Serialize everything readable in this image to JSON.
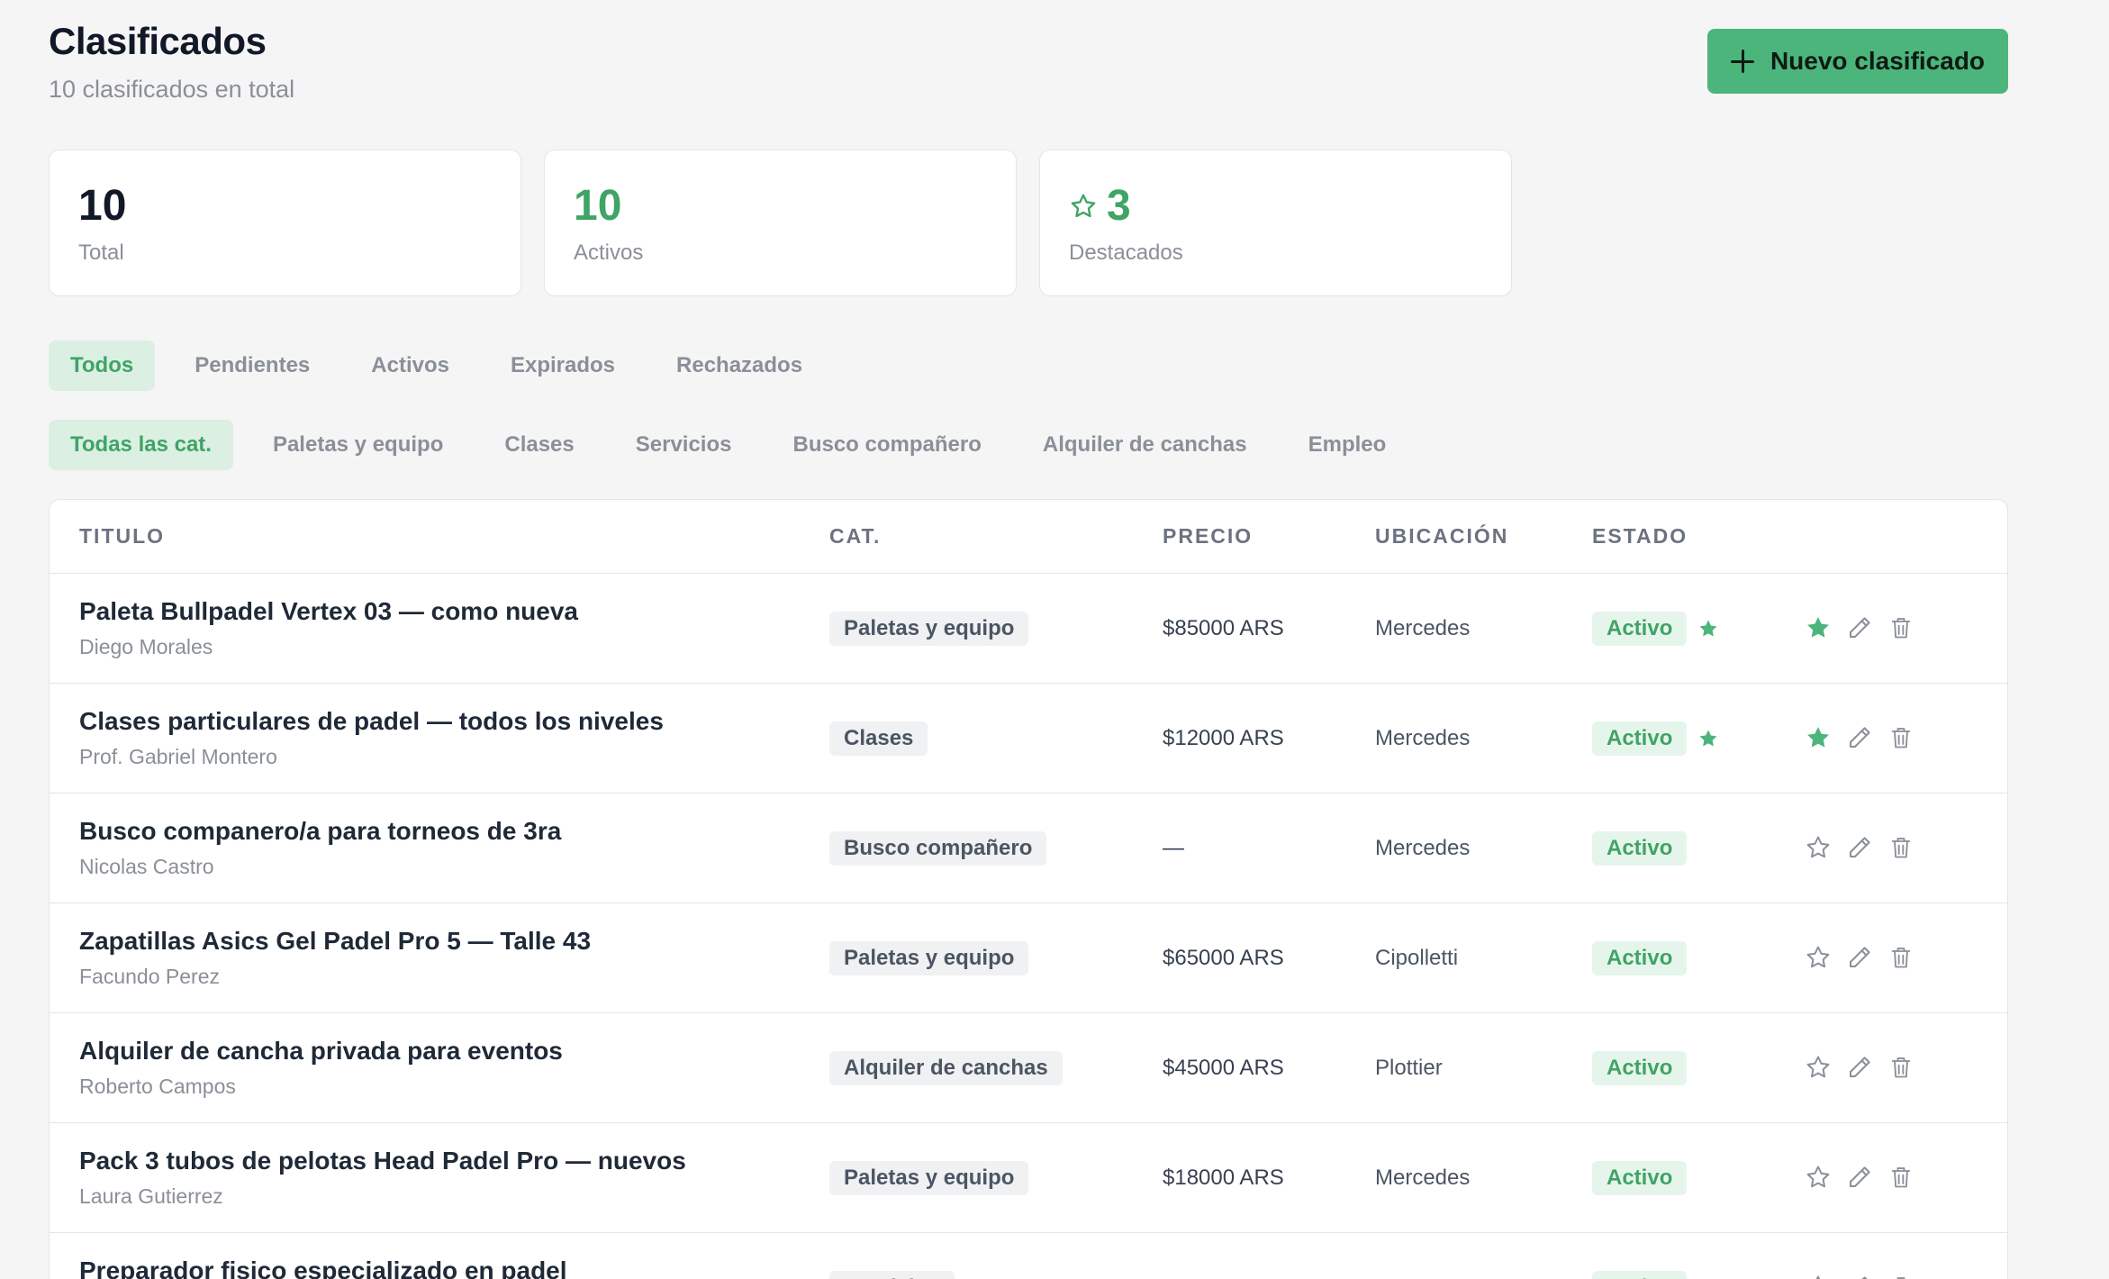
{
  "header": {
    "title": "Clasificados",
    "subtitle": "10 clasificados en total",
    "new_button_label": "Nuevo clasificado"
  },
  "stats": {
    "total": {
      "value": "10",
      "label": "Total"
    },
    "active": {
      "value": "10",
      "label": "Activos"
    },
    "featured": {
      "value": "3",
      "label": "Destacados"
    }
  },
  "status_tabs": [
    {
      "label": "Todos",
      "active": true
    },
    {
      "label": "Pendientes",
      "active": false
    },
    {
      "label": "Activos",
      "active": false
    },
    {
      "label": "Expirados",
      "active": false
    },
    {
      "label": "Rechazados",
      "active": false
    }
  ],
  "category_tabs": [
    {
      "label": "Todas las cat.",
      "active": true
    },
    {
      "label": "Paletas y equipo",
      "active": false
    },
    {
      "label": "Clases",
      "active": false
    },
    {
      "label": "Servicios",
      "active": false
    },
    {
      "label": "Busco compañero",
      "active": false
    },
    {
      "label": "Alquiler de canchas",
      "active": false
    },
    {
      "label": "Empleo",
      "active": false
    }
  ],
  "table": {
    "columns": {
      "title": "TITULO",
      "category": "CAT.",
      "price": "PRECIO",
      "location": "UBICACIÓN",
      "status": "ESTADO"
    },
    "rows": [
      {
        "title": "Paleta Bullpadel Vertex 03 — como nueva",
        "author": "Diego Morales",
        "category": "Paletas y equipo",
        "price": "$85000 ARS",
        "location": "Mercedes",
        "status": "Activo",
        "featured": true
      },
      {
        "title": "Clases particulares de padel — todos los niveles",
        "author": "Prof. Gabriel Montero",
        "category": "Clases",
        "price": "$12000 ARS",
        "location": "Mercedes",
        "status": "Activo",
        "featured": true
      },
      {
        "title": "Busco companero/a para torneos de 3ra",
        "author": "Nicolas Castro",
        "category": "Busco compañero",
        "price": "—",
        "location": "Mercedes",
        "status": "Activo",
        "featured": false
      },
      {
        "title": "Zapatillas Asics Gel Padel Pro 5 — Talle 43",
        "author": "Facundo Perez",
        "category": "Paletas y equipo",
        "price": "$65000 ARS",
        "location": "Cipolletti",
        "status": "Activo",
        "featured": false
      },
      {
        "title": "Alquiler de cancha privada para eventos",
        "author": "Roberto Campos",
        "category": "Alquiler de canchas",
        "price": "$45000 ARS",
        "location": "Plottier",
        "status": "Activo",
        "featured": false
      },
      {
        "title": "Pack 3 tubos de pelotas Head Padel Pro — nuevos",
        "author": "Laura Gutierrez",
        "category": "Paletas y equipo",
        "price": "$18000 ARS",
        "location": "Mercedes",
        "status": "Activo",
        "featured": false
      },
      {
        "title": "Preparador fisico especializado en padel",
        "author": "",
        "category": "Servicios",
        "price": "",
        "location": "",
        "status": "Activo",
        "featured": false
      }
    ]
  },
  "colors": {
    "accent": "#4cb57c",
    "accent_text": "#3fa465",
    "badge_bg": "#e6f5eb",
    "chip_bg": "#f0f1f3"
  }
}
